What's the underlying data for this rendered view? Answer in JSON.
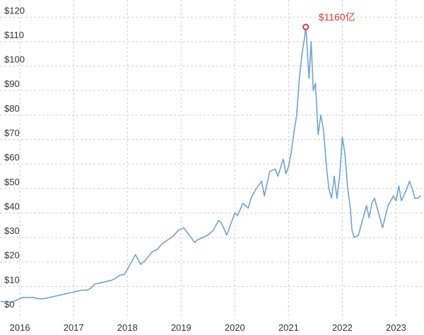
{
  "chart_data": {
    "type": "line",
    "title": "",
    "xlabel": "",
    "ylabel": "",
    "y_tick_labels": [
      "$0",
      "$10",
      "$20",
      "$30",
      "$40",
      "$50",
      "$60",
      "$70",
      "$80",
      "$90",
      "$100",
      "$110",
      "$120"
    ],
    "y_ticks": [
      0,
      10,
      20,
      30,
      40,
      50,
      60,
      70,
      80,
      90,
      100,
      110,
      120
    ],
    "x_tick_labels": [
      "2016",
      "2017",
      "2018",
      "2019",
      "2020",
      "2021",
      "2022",
      "2023"
    ],
    "x_ticks": [
      2016,
      2017,
      2018,
      2019,
      2020,
      2021,
      2022,
      2023
    ],
    "xlim": [
      2015.63,
      2023.52
    ],
    "ylim": [
      0,
      127
    ],
    "grid": true,
    "series": [
      {
        "color": "#6fa3cf",
        "x": [
          2015.65,
          2015.75,
          2015.85,
          2015.95,
          2016.05,
          2016.15,
          2016.25,
          2016.35,
          2016.45,
          2016.55,
          2016.65,
          2016.75,
          2016.85,
          2016.95,
          2017.05,
          2017.15,
          2017.25,
          2017.3,
          2017.4,
          2017.5,
          2017.6,
          2017.7,
          2017.75,
          2017.85,
          2017.95,
          2018.0,
          2018.1,
          2018.15,
          2018.25,
          2018.35,
          2018.45,
          2018.55,
          2018.65,
          2018.75,
          2018.85,
          2018.95,
          2019.05,
          2019.15,
          2019.25,
          2019.3,
          2019.4,
          2019.5,
          2019.6,
          2019.7,
          2019.75,
          2019.85,
          2019.95,
          2020.0,
          2020.05,
          2020.15,
          2020.25,
          2020.3,
          2020.4,
          2020.5,
          2020.55,
          2020.65,
          2020.75,
          2020.8,
          2020.9,
          2020.95,
          2021.0,
          2021.05,
          2021.1,
          2021.15,
          2021.2,
          2021.25,
          2021.3,
          2021.32,
          2021.38,
          2021.42,
          2021.46,
          2021.5,
          2021.55,
          2021.6,
          2021.65,
          2021.7,
          2021.75,
          2021.8,
          2021.85,
          2021.9,
          2021.95,
          2022.0,
          2022.05,
          2022.1,
          2022.15,
          2022.18,
          2022.22,
          2022.3,
          2022.35,
          2022.45,
          2022.5,
          2022.55,
          2022.6,
          2022.65,
          2022.75,
          2022.85,
          2022.95,
          2023.0,
          2023.05,
          2023.1,
          2023.2,
          2023.25,
          2023.3,
          2023.35,
          2023.4,
          2023.45
        ],
        "values": [
          4,
          3.5,
          3.5,
          4.5,
          5.5,
          5.5,
          5.5,
          5,
          5,
          5.5,
          6,
          6.5,
          7,
          7.5,
          8,
          8.5,
          8.5,
          9,
          11,
          11.5,
          12,
          12.5,
          13,
          14.5,
          15,
          17,
          21,
          23,
          19,
          21,
          24,
          25,
          27.5,
          29,
          30.5,
          33,
          34,
          31,
          28,
          29,
          30,
          31,
          33,
          37,
          36,
          31,
          37,
          40,
          39,
          44,
          42,
          46,
          50,
          53,
          47,
          57,
          58,
          55,
          62,
          56,
          59,
          65,
          73,
          80,
          95,
          105,
          112,
          117,
          95,
          110,
          90,
          93,
          72,
          80,
          74,
          60,
          50,
          46,
          55,
          46,
          55,
          71,
          64,
          50,
          42,
          33,
          30,
          31,
          35,
          43,
          38,
          44,
          46,
          42,
          34,
          43,
          47,
          45,
          51,
          45,
          50,
          53,
          50,
          46,
          46,
          47
        ]
      }
    ],
    "annotations": [
      {
        "x": 2021.32,
        "y": 116,
        "text": "$1160亿",
        "color": "#d63a3a"
      }
    ]
  }
}
